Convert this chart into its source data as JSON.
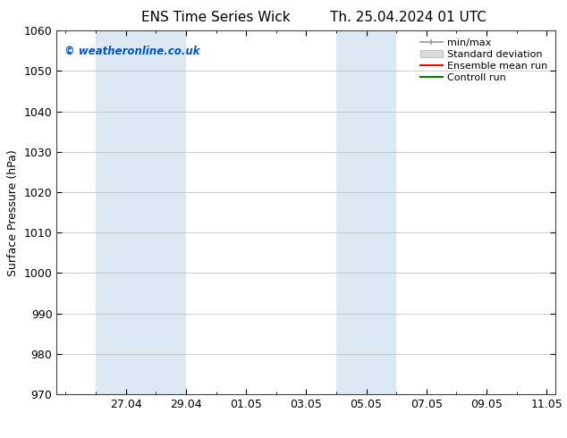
{
  "title_left": "ENS Time Series Wick",
  "title_right": "Th. 25.04.2024 01 UTC",
  "ylabel": "Surface Pressure (hPa)",
  "ylim": [
    970,
    1060
  ],
  "yticks": [
    970,
    980,
    990,
    1000,
    1010,
    1020,
    1030,
    1040,
    1050,
    1060
  ],
  "xtick_labels": [
    "27.04",
    "29.04",
    "01.05",
    "03.05",
    "05.05",
    "07.05",
    "09.05",
    "11.05"
  ],
  "shade_color": "#dce9f5",
  "watermark_text": "© weatheronline.co.uk",
  "watermark_color": "#0055cc",
  "background_color": "#ffffff",
  "plot_bg_color": "#ffffff",
  "grid_color": "#bbbbbb",
  "legend_font_size": 8,
  "axis_font_size": 9,
  "title_font_size": 11
}
